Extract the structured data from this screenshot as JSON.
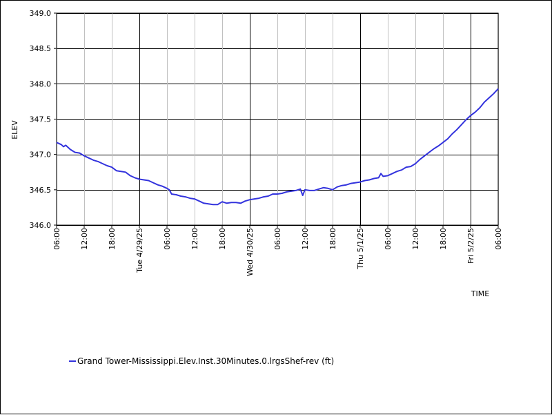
{
  "chart_data": {
    "type": "line",
    "xlabel": "TIME",
    "ylabel": "ELEV",
    "ylim": [
      346.0,
      349.0
    ],
    "yticks": [
      "346.0",
      "346.5",
      "347.0",
      "347.5",
      "348.0",
      "348.5",
      "349.0"
    ],
    "xticks": [
      "06:00",
      "12:00",
      "18:00",
      "Tue 4/29/25",
      "06:00",
      "12:00",
      "18:00",
      "Wed 4/30/25",
      "06:00",
      "12:00",
      "18:00",
      "Thu 5/1/25",
      "06:00",
      "12:00",
      "18:00",
      "Fri 5/2/25",
      "06:00"
    ],
    "xrange_hours": [
      0,
      96
    ],
    "grid": true,
    "legend_position": "bottom-left",
    "series": [
      {
        "name": "Grand Tower-Mississippi.Elev.Inst.30Minutes.0.lrgsShef-rev (ft)",
        "color": "#3333dd",
        "points": [
          [
            0,
            347.17
          ],
          [
            1,
            347.14
          ],
          [
            1.5,
            347.11
          ],
          [
            2,
            347.13
          ],
          [
            3,
            347.07
          ],
          [
            4,
            347.03
          ],
          [
            5,
            347.02
          ],
          [
            6,
            346.98
          ],
          [
            7,
            346.95
          ],
          [
            8,
            346.92
          ],
          [
            9,
            346.9
          ],
          [
            10,
            346.87
          ],
          [
            11,
            346.84
          ],
          [
            12,
            346.82
          ],
          [
            13,
            346.77
          ],
          [
            14,
            346.76
          ],
          [
            15,
            346.75
          ],
          [
            16,
            346.7
          ],
          [
            17,
            346.67
          ],
          [
            18,
            346.65
          ],
          [
            19,
            346.64
          ],
          [
            20,
            346.63
          ],
          [
            21,
            346.6
          ],
          [
            22,
            346.57
          ],
          [
            23,
            346.55
          ],
          [
            24,
            346.52
          ],
          [
            24.5,
            346.5
          ],
          [
            25,
            346.44
          ],
          [
            26,
            346.43
          ],
          [
            27,
            346.41
          ],
          [
            28,
            346.4
          ],
          [
            29,
            346.38
          ],
          [
            30,
            346.37
          ],
          [
            31,
            346.34
          ],
          [
            32,
            346.31
          ],
          [
            33,
            346.3
          ],
          [
            34,
            346.29
          ],
          [
            35,
            346.29
          ],
          [
            36,
            346.33
          ],
          [
            37,
            346.31
          ],
          [
            38,
            346.32
          ],
          [
            39,
            346.32
          ],
          [
            40,
            346.31
          ],
          [
            41,
            346.34
          ],
          [
            42,
            346.36
          ],
          [
            43,
            346.37
          ],
          [
            44,
            346.38
          ],
          [
            45,
            346.4
          ],
          [
            46,
            346.41
          ],
          [
            47,
            346.44
          ],
          [
            48,
            346.44
          ],
          [
            49,
            346.45
          ],
          [
            50,
            346.47
          ],
          [
            51,
            346.48
          ],
          [
            52,
            346.49
          ],
          [
            53,
            346.51
          ],
          [
            53.5,
            346.42
          ],
          [
            54,
            346.5
          ],
          [
            55,
            346.49
          ],
          [
            56,
            346.49
          ],
          [
            57,
            346.51
          ],
          [
            58,
            346.53
          ],
          [
            59,
            346.52
          ],
          [
            60,
            346.5
          ],
          [
            61,
            346.54
          ],
          [
            62,
            346.56
          ],
          [
            63,
            346.57
          ],
          [
            64,
            346.59
          ],
          [
            65,
            346.6
          ],
          [
            66,
            346.61
          ],
          [
            67,
            346.63
          ],
          [
            68,
            346.64
          ],
          [
            69,
            346.66
          ],
          [
            70,
            346.67
          ],
          [
            70.5,
            346.73
          ],
          [
            71,
            346.69
          ],
          [
            72,
            346.7
          ],
          [
            73,
            346.73
          ],
          [
            74,
            346.76
          ],
          [
            75,
            346.78
          ],
          [
            76,
            346.82
          ],
          [
            77,
            346.83
          ],
          [
            78,
            346.87
          ],
          [
            79,
            346.93
          ],
          [
            80,
            346.98
          ],
          [
            81,
            347.03
          ],
          [
            82,
            347.08
          ],
          [
            83,
            347.12
          ],
          [
            84,
            347.17
          ],
          [
            85,
            347.22
          ],
          [
            86,
            347.29
          ],
          [
            87,
            347.35
          ],
          [
            88,
            347.42
          ],
          [
            89,
            347.49
          ],
          [
            90,
            347.55
          ],
          [
            91,
            347.6
          ],
          [
            92,
            347.66
          ],
          [
            93,
            347.74
          ],
          [
            94,
            347.8
          ],
          [
            95,
            347.86
          ],
          [
            96,
            347.93
          ]
        ]
      }
    ]
  }
}
